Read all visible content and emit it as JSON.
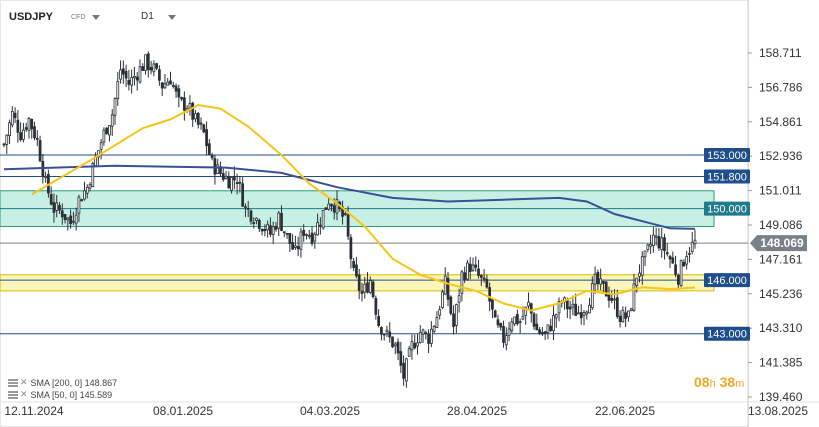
{
  "header": {
    "symbol": "USDJPY",
    "instrument_type": "CFD",
    "timeframe": "D1"
  },
  "legend": [
    {
      "label": "SMA [200, 0]",
      "value": "148.867",
      "color": "#3a4f9a"
    },
    {
      "label": "SMA [50, 0]",
      "value": "145.589",
      "color": "#f5c518"
    }
  ],
  "timer": {
    "hours": "08",
    "h_unit": "h",
    "minutes": "38",
    "m_unit": "m"
  },
  "chart_data": {
    "type": "candlestick",
    "y_ticks": [
      "158.711",
      "156.786",
      "154.861",
      "152.936",
      "151.011",
      "149.086",
      "147.161",
      "145.236",
      "143.310",
      "141.385",
      "139.460"
    ],
    "ylim": [
      139.46,
      158.711
    ],
    "x_ticks": [
      "12.11.2024",
      "08.01.2025",
      "04.03.2025",
      "28.04.2025",
      "22.06.2025",
      "13.08.2025"
    ],
    "current_price": {
      "label": "148.069",
      "value": 148.069,
      "color": "#7a8088"
    },
    "levels": [
      {
        "label": "153.000",
        "value": 153.0,
        "color": "#1f4e8c"
      },
      {
        "label": "151.800",
        "value": 151.8,
        "color": "#1f4e8c"
      },
      {
        "label": "150.000",
        "value": 150.0,
        "color": "#1f7a8c"
      },
      {
        "label": "146.000",
        "value": 146.0,
        "color": "#1f4e8c"
      },
      {
        "label": "143.000",
        "value": 143.0,
        "color": "#1f4e8c"
      }
    ],
    "zones": [
      {
        "from": 149.0,
        "to": 151.0,
        "fill": "#b8ecdc",
        "stroke": "#2a9c7a"
      },
      {
        "from": 145.4,
        "to": 146.3,
        "fill": "#fbf5a6",
        "stroke": "#d6b800"
      }
    ],
    "price_path": [
      [
        0,
        153.6
      ],
      [
        3,
        155.3
      ],
      [
        6,
        154.2
      ],
      [
        9,
        155.0
      ],
      [
        12,
        153.8
      ],
      [
        15,
        151.4
      ],
      [
        18,
        150.0
      ],
      [
        21,
        149.8
      ],
      [
        24,
        149.2
      ],
      [
        27,
        150.5
      ],
      [
        30,
        151.2
      ],
      [
        33,
        152.8
      ],
      [
        36,
        154.2
      ],
      [
        39,
        155.3
      ],
      [
        42,
        157.8
      ],
      [
        45,
        157.0
      ],
      [
        48,
        157.6
      ],
      [
        51,
        158.2
      ],
      [
        54,
        157.8
      ],
      [
        57,
        156.9
      ],
      [
        60,
        157.3
      ],
      [
        63,
        155.9
      ],
      [
        66,
        155.8
      ],
      [
        69,
        154.9
      ],
      [
        72,
        154.2
      ],
      [
        75,
        152.5
      ],
      [
        78,
        152.0
      ],
      [
        81,
        151.6
      ],
      [
        84,
        151.7
      ],
      [
        87,
        150.0
      ],
      [
        90,
        149.6
      ],
      [
        93,
        149.1
      ],
      [
        96,
        148.6
      ],
      [
        99,
        149.5
      ],
      [
        102,
        148.4
      ],
      [
        105,
        147.5
      ],
      [
        108,
        148.8
      ],
      [
        111,
        148.5
      ],
      [
        114,
        149.4
      ],
      [
        117,
        150.5
      ],
      [
        120,
        150.1
      ],
      [
        123,
        149.3
      ],
      [
        126,
        146.3
      ],
      [
        129,
        145.2
      ],
      [
        132,
        146.0
      ],
      [
        135,
        143.6
      ],
      [
        138,
        142.9
      ],
      [
        141,
        142.3
      ],
      [
        144,
        140.6
      ],
      [
        147,
        142.3
      ],
      [
        150,
        143.1
      ],
      [
        153,
        142.8
      ],
      [
        156,
        144.0
      ],
      [
        159,
        145.8
      ],
      [
        162,
        143.4
      ],
      [
        165,
        146.3
      ],
      [
        168,
        146.8
      ],
      [
        171,
        146.2
      ],
      [
        174,
        145.5
      ],
      [
        177,
        143.5
      ],
      [
        180,
        142.7
      ],
      [
        183,
        143.9
      ],
      [
        186,
        143.7
      ],
      [
        189,
        144.6
      ],
      [
        192,
        143.2
      ],
      [
        195,
        142.9
      ],
      [
        198,
        143.8
      ],
      [
        201,
        144.8
      ],
      [
        204,
        144.4
      ],
      [
        207,
        144.2
      ],
      [
        210,
        144.6
      ],
      [
        213,
        145.9
      ],
      [
        216,
        145.5
      ],
      [
        219,
        145.0
      ],
      [
        222,
        144.0
      ],
      [
        225,
        143.9
      ],
      [
        228,
        146.3
      ],
      [
        231,
        147.2
      ],
      [
        234,
        148.4
      ],
      [
        237,
        148.0
      ],
      [
        240,
        147.2
      ],
      [
        243,
        146.2
      ],
      [
        246,
        147.6
      ],
      [
        249,
        148.1
      ]
    ],
    "sma200": [
      [
        0,
        152.2
      ],
      [
        40,
        152.4
      ],
      [
        80,
        152.3
      ],
      [
        100,
        152.0
      ],
      [
        120,
        151.2
      ],
      [
        140,
        150.6
      ],
      [
        160,
        150.4
      ],
      [
        180,
        150.5
      ],
      [
        200,
        150.6
      ],
      [
        210,
        150.4
      ],
      [
        220,
        149.7
      ],
      [
        230,
        149.3
      ],
      [
        240,
        148.9
      ],
      [
        249,
        148.87
      ]
    ],
    "sma50": [
      [
        10,
        150.8
      ],
      [
        30,
        152.6
      ],
      [
        50,
        154.5
      ],
      [
        60,
        155.0
      ],
      [
        70,
        155.8
      ],
      [
        78,
        155.6
      ],
      [
        88,
        154.6
      ],
      [
        100,
        153.0
      ],
      [
        110,
        151.4
      ],
      [
        120,
        150.3
      ],
      [
        130,
        149.0
      ],
      [
        140,
        147.2
      ],
      [
        150,
        146.3
      ],
      [
        160,
        145.8
      ],
      [
        170,
        145.4
      ],
      [
        180,
        144.7
      ],
      [
        190,
        144.3
      ],
      [
        200,
        144.7
      ],
      [
        210,
        145.4
      ],
      [
        220,
        145.2
      ],
      [
        230,
        145.6
      ],
      [
        240,
        145.5
      ],
      [
        249,
        145.59
      ]
    ]
  }
}
